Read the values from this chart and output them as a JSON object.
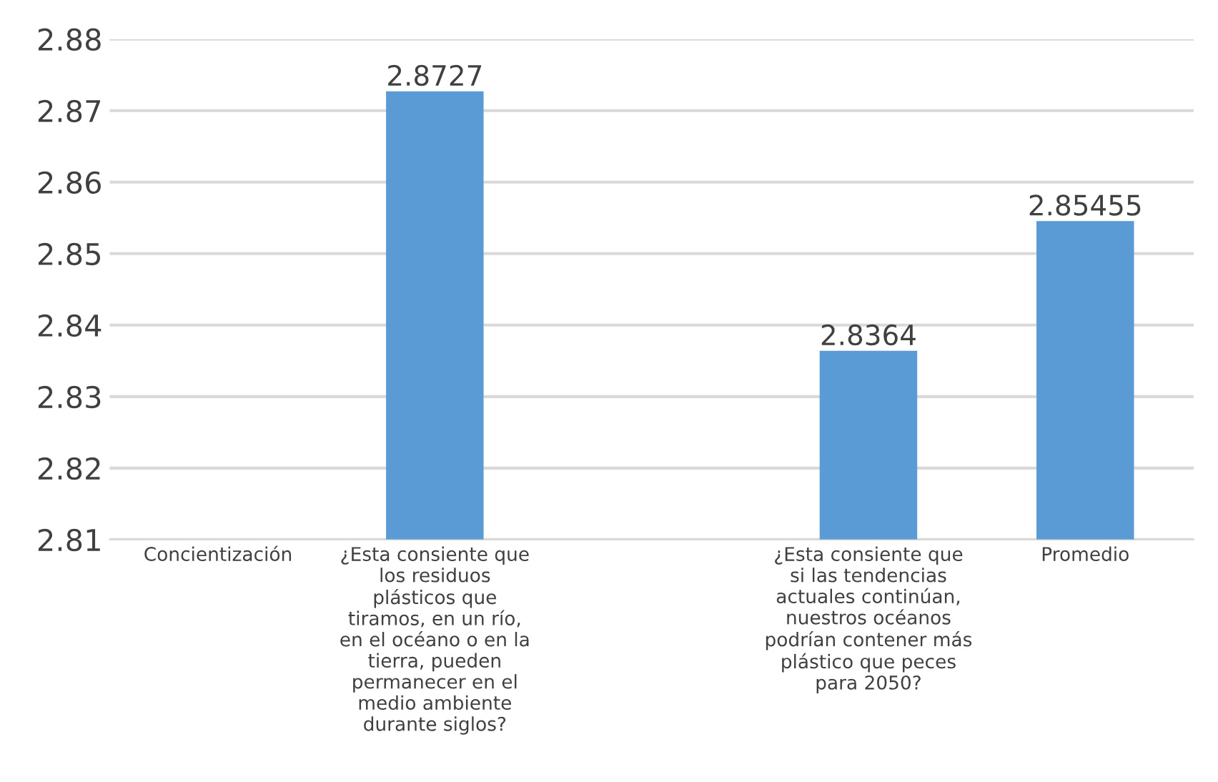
{
  "chart_data": {
    "type": "bar",
    "categories": [
      "Concientización",
      "¿Esta consiente que los residuos plásticos que tiramos, en un río, en el océano o en la tierra, pueden permanecer en el medio ambiente durante siglos?",
      null,
      "¿Esta consiente que si las tendencias actuales continúan, nuestros océanos podrían contener más plástico que peces para 2050?",
      "Promedio"
    ],
    "values": [
      null,
      2.8727,
      null,
      2.8364,
      2.85455
    ],
    "color": "#5b9bd5",
    "ylim": [
      2.81,
      2.88
    ],
    "yticks": [
      2.81,
      2.82,
      2.83,
      2.84,
      2.85,
      2.86,
      2.87,
      2.88
    ],
    "grid": "y",
    "data_labels": true
  }
}
